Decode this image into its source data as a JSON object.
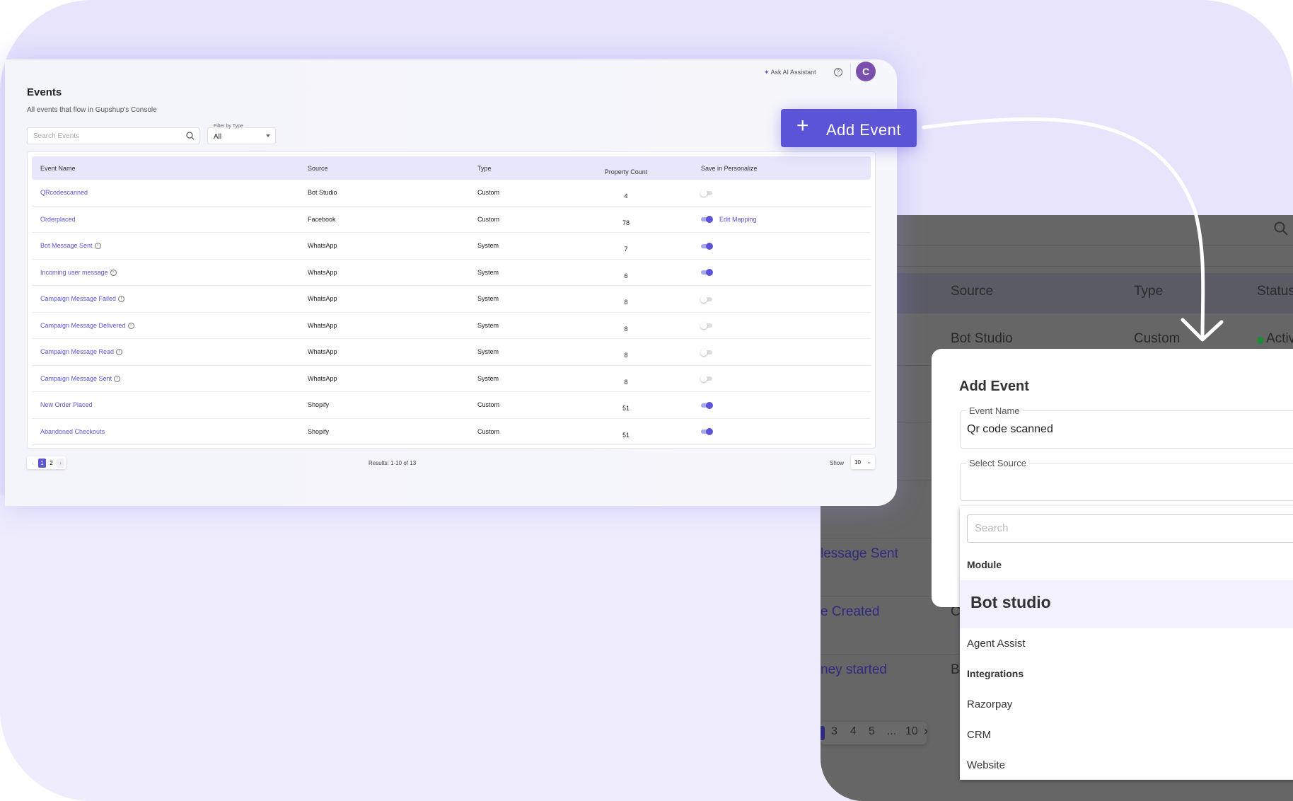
{
  "events_page": {
    "title": "Events",
    "subtitle": "All events that flow in Gupshup's Console",
    "search_placeholder": "Search Events",
    "filter": {
      "label": "Filter by Type",
      "value": "All"
    },
    "header": {
      "ask_ai": "Ask AI Assistant",
      "help": "?",
      "avatar": "C"
    },
    "columns": [
      "Event Name",
      "Source",
      "Type",
      "Property Count",
      "Save in Personalize"
    ],
    "rows": [
      {
        "name": "QRcodescanned",
        "info": false,
        "source": "Bot Studio",
        "type": "Custom",
        "count": "4",
        "save": false,
        "edit": ""
      },
      {
        "name": "Orderplaced",
        "info": false,
        "source": "Facebook",
        "type": "Custom",
        "count": "78",
        "save": true,
        "edit": "Edit Mapping"
      },
      {
        "name": "Bot Message Sent",
        "info": true,
        "source": "WhatsApp",
        "type": "System",
        "count": "7",
        "save": true,
        "edit": ""
      },
      {
        "name": "Incoming user message",
        "info": true,
        "source": "WhatsApp",
        "type": "System",
        "count": "6",
        "save": true,
        "edit": ""
      },
      {
        "name": "Campaign Message Failed",
        "info": true,
        "source": "WhatsApp",
        "type": "System",
        "count": "8",
        "save": false,
        "edit": ""
      },
      {
        "name": "Campaign Message Delivered",
        "info": true,
        "source": "WhatsApp",
        "type": "System",
        "count": "8",
        "save": false,
        "edit": ""
      },
      {
        "name": "Campaign Message Read",
        "info": true,
        "source": "WhatsApp",
        "type": "System",
        "count": "8",
        "save": false,
        "edit": ""
      },
      {
        "name": "Campaign Message Sent",
        "info": true,
        "source": "WhatsApp",
        "type": "System",
        "count": "8",
        "save": false,
        "edit": ""
      },
      {
        "name": "New Order Placed",
        "info": false,
        "source": "Shopify",
        "type": "Custom",
        "count": "51",
        "save": true,
        "edit": ""
      },
      {
        "name": "Abandoned Checkouts",
        "info": false,
        "source": "Shopify",
        "type": "Custom",
        "count": "51",
        "save": true,
        "edit": ""
      }
    ],
    "pagination": {
      "prev": "‹",
      "pages": [
        "1",
        "2"
      ],
      "current": "1",
      "next": "›"
    },
    "results": "Results: 1-10 of 13",
    "show_label": "Show",
    "show_value": "10"
  },
  "add_event_button": {
    "icon": "+",
    "label": "Add Event"
  },
  "background_page": {
    "columns": [
      "Source",
      "Type",
      "Status"
    ],
    "row": {
      "source": "Bot Studio",
      "type": "Custom",
      "status": "Active",
      "status_color": "#1e8a3a"
    },
    "partial_names": [
      "d",
      "lessage Sent",
      "e Created",
      "ney started"
    ],
    "partial_sources": [
      "C",
      "B"
    ],
    "pages": [
      "3",
      "4",
      "5",
      "...",
      "10"
    ],
    "next": "›"
  },
  "modal": {
    "title": "Add Event",
    "event_name_label": "Event Name",
    "event_name_value": "Qr code scanned",
    "source_label": "Select Source",
    "dropdown": {
      "search_placeholder": "Search",
      "groups": [
        "Module",
        "Integrations"
      ],
      "selected": "Bot studio",
      "items": {
        "agent": "Agent Assist",
        "razorpay": "Razorpay",
        "crm": "CRM",
        "website": "Website"
      }
    }
  },
  "colors": {
    "accent": "#5b54d6",
    "avatar": "#7b4fae",
    "background": "#e7e4fc"
  }
}
